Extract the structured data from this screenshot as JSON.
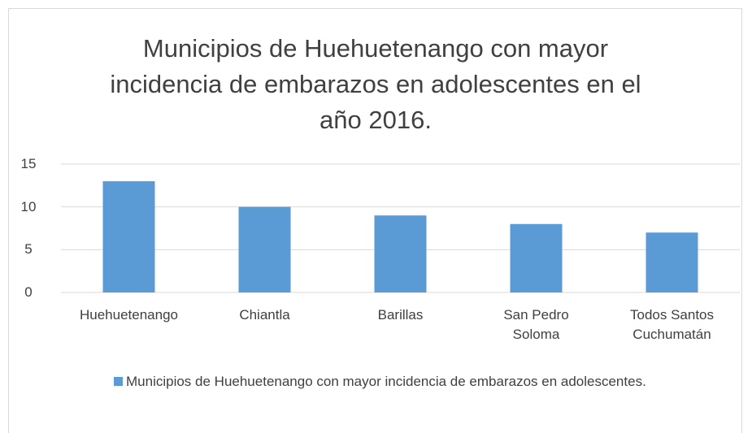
{
  "chart_data": {
    "type": "bar",
    "title": "Municipios de Huehuetenango con mayor incidencia de embarazos en adolescentes en el año 2016.",
    "categories": [
      "Huehuetenango",
      "Chiantla",
      "Barillas",
      "San Pedro Soloma",
      "Todos Santos Cuchumatán"
    ],
    "series": [
      {
        "name": "Municipios de Huehuetenango con mayor incidencia de embarazos en adolescentes.",
        "color": "#5b9bd5",
        "values": [
          13,
          10,
          9,
          8,
          7
        ]
      }
    ],
    "ylim": [
      0,
      15
    ],
    "yticks": [
      0,
      5,
      10,
      15
    ],
    "grid": true,
    "legend": "bottom"
  }
}
